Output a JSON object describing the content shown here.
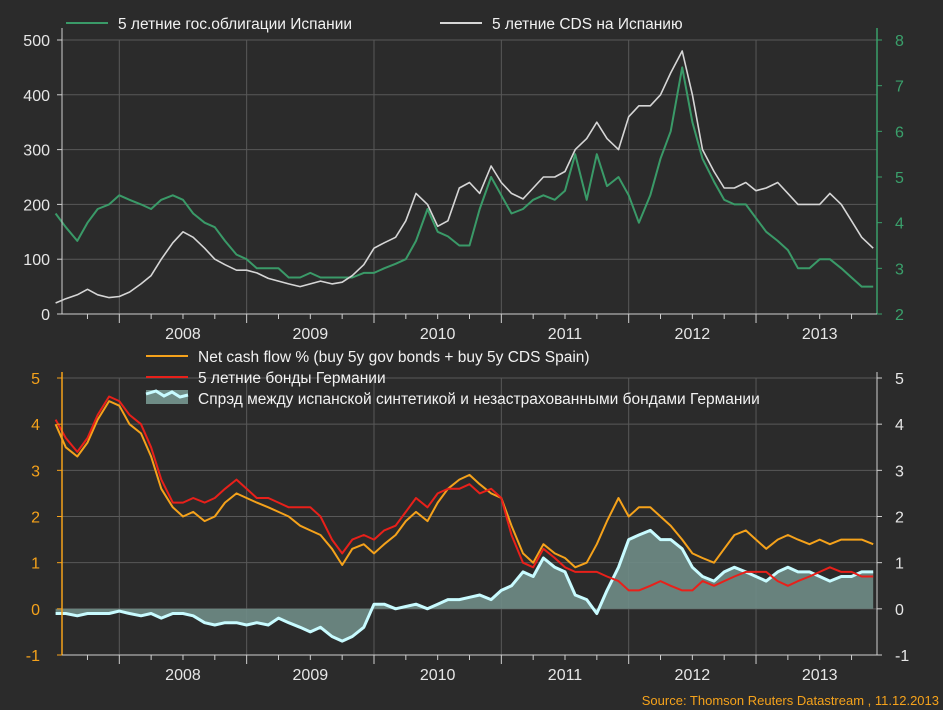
{
  "colors": {
    "background": "#2b2b2b",
    "spain_bonds": "#3a9a68",
    "spain_cds": "#d6d6d6",
    "net_cash_flow": "#f5a21b",
    "german_bonds": "#e8201a",
    "spread_line": "#c8fbff",
    "spread_fill": "#6f8c86",
    "axis_right_top": "#3aa06b",
    "axis_left_bottom": "#f5a21b"
  },
  "source": "Source: Thomson Reuters Datastream , 11.12.2013",
  "chart_data": [
    {
      "type": "line",
      "panel": "top",
      "x_labels": [
        "2008",
        "2009",
        "2010",
        "2011",
        "2012",
        "2013"
      ],
      "xlim": [
        "2007-07",
        "2013-12"
      ],
      "ylim_left": [
        0,
        500
      ],
      "yticks_left": [
        "0",
        "100",
        "200",
        "300",
        "400",
        "500"
      ],
      "ylim_right": [
        2,
        8
      ],
      "yticks_right": [
        "2",
        "3",
        "4",
        "5",
        "6",
        "7",
        "8"
      ],
      "grid": true,
      "legend_placement": "top",
      "series": [
        {
          "name": "5 летние гос.облигации Испании",
          "axis": "right",
          "x": [
            2007.5,
            2007.58,
            2007.67,
            2007.75,
            2007.83,
            2007.92,
            2008.0,
            2008.08,
            2008.17,
            2008.25,
            2008.33,
            2008.42,
            2008.5,
            2008.58,
            2008.67,
            2008.75,
            2008.83,
            2008.92,
            2009.0,
            2009.08,
            2009.17,
            2009.25,
            2009.33,
            2009.42,
            2009.5,
            2009.58,
            2009.67,
            2009.75,
            2009.83,
            2009.92,
            2010.0,
            2010.08,
            2010.17,
            2010.25,
            2010.33,
            2010.42,
            2010.5,
            2010.58,
            2010.67,
            2010.75,
            2010.83,
            2010.92,
            2011.0,
            2011.08,
            2011.17,
            2011.25,
            2011.33,
            2011.42,
            2011.5,
            2011.58,
            2011.67,
            2011.75,
            2011.83,
            2011.92,
            2012.0,
            2012.08,
            2012.17,
            2012.25,
            2012.33,
            2012.42,
            2012.5,
            2012.58,
            2012.67,
            2012.75,
            2012.83,
            2012.92,
            2013.0,
            2013.08,
            2013.17,
            2013.25,
            2013.33,
            2013.42,
            2013.5,
            2013.58,
            2013.67,
            2013.75,
            2013.83,
            2013.92
          ],
          "y": [
            4.2,
            3.9,
            3.6,
            4.0,
            4.3,
            4.4,
            4.6,
            4.5,
            4.4,
            4.3,
            4.5,
            4.6,
            4.5,
            4.2,
            4.0,
            3.9,
            3.6,
            3.3,
            3.2,
            3.0,
            3.0,
            3.0,
            2.8,
            2.8,
            2.9,
            2.8,
            2.8,
            2.8,
            2.8,
            2.9,
            2.9,
            3.0,
            3.1,
            3.2,
            3.6,
            4.3,
            3.8,
            3.7,
            3.5,
            3.5,
            4.3,
            5.0,
            4.6,
            4.2,
            4.3,
            4.5,
            4.6,
            4.5,
            4.7,
            5.5,
            4.5,
            5.5,
            4.8,
            5.0,
            4.6,
            4.0,
            4.6,
            5.4,
            6.0,
            7.4,
            6.2,
            5.4,
            4.9,
            4.5,
            4.4,
            4.4,
            4.1,
            3.8,
            3.6,
            3.4,
            3.0,
            3.0,
            3.2,
            3.2,
            3.0,
            2.8,
            2.6,
            2.6
          ]
        },
        {
          "name": "5 летние CDS на Испанию",
          "axis": "left",
          "x": [
            2007.5,
            2007.58,
            2007.67,
            2007.75,
            2007.83,
            2007.92,
            2008.0,
            2008.08,
            2008.17,
            2008.25,
            2008.33,
            2008.42,
            2008.5,
            2008.58,
            2008.67,
            2008.75,
            2008.83,
            2008.92,
            2009.0,
            2009.08,
            2009.17,
            2009.25,
            2009.33,
            2009.42,
            2009.5,
            2009.58,
            2009.67,
            2009.75,
            2009.83,
            2009.92,
            2010.0,
            2010.08,
            2010.17,
            2010.25,
            2010.33,
            2010.42,
            2010.5,
            2010.58,
            2010.67,
            2010.75,
            2010.83,
            2010.92,
            2011.0,
            2011.08,
            2011.17,
            2011.25,
            2011.33,
            2011.42,
            2011.5,
            2011.58,
            2011.67,
            2011.75,
            2011.83,
            2011.92,
            2012.0,
            2012.08,
            2012.17,
            2012.25,
            2012.33,
            2012.42,
            2012.5,
            2012.58,
            2012.67,
            2012.75,
            2012.83,
            2012.92,
            2013.0,
            2013.08,
            2013.17,
            2013.25,
            2013.33,
            2013.42,
            2013.5,
            2013.58,
            2013.67,
            2013.75,
            2013.83,
            2013.92
          ],
          "y": [
            20,
            28,
            35,
            45,
            35,
            30,
            32,
            40,
            55,
            70,
            100,
            130,
            150,
            140,
            120,
            100,
            90,
            80,
            80,
            75,
            65,
            60,
            55,
            50,
            55,
            60,
            55,
            58,
            70,
            90,
            120,
            130,
            140,
            170,
            220,
            200,
            160,
            170,
            230,
            240,
            220,
            270,
            240,
            220,
            210,
            230,
            250,
            250,
            260,
            300,
            320,
            350,
            320,
            300,
            360,
            380,
            380,
            400,
            440,
            480,
            400,
            300,
            260,
            230,
            230,
            240,
            225,
            230,
            240,
            220,
            200,
            200,
            200,
            220,
            200,
            170,
            140,
            120
          ]
        }
      ]
    },
    {
      "type": "line",
      "panel": "bottom",
      "x_labels": [
        "2008",
        "2009",
        "2010",
        "2011",
        "2012",
        "2013"
      ],
      "xlim": [
        "2007-07",
        "2013-12"
      ],
      "ylim": [
        -1,
        5
      ],
      "yticks": [
        "-1",
        "0",
        "1",
        "2",
        "3",
        "4",
        "5"
      ],
      "grid": true,
      "legend_placement": "top",
      "series": [
        {
          "name": "Net cash flow % (buy 5y gov bonds + buy 5y CDS Spain)",
          "x": [
            2007.5,
            2007.58,
            2007.67,
            2007.75,
            2007.83,
            2007.92,
            2008.0,
            2008.08,
            2008.17,
            2008.25,
            2008.33,
            2008.42,
            2008.5,
            2008.58,
            2008.67,
            2008.75,
            2008.83,
            2008.92,
            2009.0,
            2009.08,
            2009.17,
            2009.25,
            2009.33,
            2009.42,
            2009.5,
            2009.58,
            2009.67,
            2009.75,
            2009.83,
            2009.92,
            2010.0,
            2010.08,
            2010.17,
            2010.25,
            2010.33,
            2010.42,
            2010.5,
            2010.58,
            2010.67,
            2010.75,
            2010.83,
            2010.92,
            2011.0,
            2011.08,
            2011.17,
            2011.25,
            2011.33,
            2011.42,
            2011.5,
            2011.58,
            2011.67,
            2011.75,
            2011.83,
            2011.92,
            2012.0,
            2012.08,
            2012.17,
            2012.25,
            2012.33,
            2012.42,
            2012.5,
            2012.58,
            2012.67,
            2012.75,
            2012.83,
            2012.92,
            2013.0,
            2013.08,
            2013.17,
            2013.25,
            2013.33,
            2013.42,
            2013.5,
            2013.58,
            2013.67,
            2013.75,
            2013.83,
            2013.92
          ],
          "y": [
            4.0,
            3.5,
            3.3,
            3.6,
            4.1,
            4.5,
            4.4,
            4.0,
            3.8,
            3.3,
            2.6,
            2.2,
            2.0,
            2.1,
            1.9,
            2.0,
            2.3,
            2.5,
            2.4,
            2.3,
            2.2,
            2.1,
            2.0,
            1.8,
            1.7,
            1.6,
            1.3,
            0.95,
            1.3,
            1.4,
            1.2,
            1.4,
            1.6,
            1.9,
            2.1,
            1.9,
            2.3,
            2.6,
            2.8,
            2.9,
            2.7,
            2.5,
            2.4,
            1.8,
            1.2,
            1.0,
            1.4,
            1.2,
            1.1,
            0.9,
            1.0,
            1.4,
            1.9,
            2.4,
            2.0,
            2.2,
            2.2,
            2.0,
            1.8,
            1.5,
            1.2,
            1.1,
            1.0,
            1.3,
            1.6,
            1.7,
            1.5,
            1.3,
            1.5,
            1.6,
            1.5,
            1.4,
            1.5,
            1.4,
            1.5,
            1.5,
            1.5,
            1.4
          ]
        },
        {
          "name": "5 летние бонды Германии",
          "x": [
            2007.5,
            2007.58,
            2007.67,
            2007.75,
            2007.83,
            2007.92,
            2008.0,
            2008.08,
            2008.17,
            2008.25,
            2008.33,
            2008.42,
            2008.5,
            2008.58,
            2008.67,
            2008.75,
            2008.83,
            2008.92,
            2009.0,
            2009.08,
            2009.17,
            2009.25,
            2009.33,
            2009.42,
            2009.5,
            2009.58,
            2009.67,
            2009.75,
            2009.83,
            2009.92,
            2010.0,
            2010.08,
            2010.17,
            2010.25,
            2010.33,
            2010.42,
            2010.5,
            2010.58,
            2010.67,
            2010.75,
            2010.83,
            2010.92,
            2011.0,
            2011.08,
            2011.17,
            2011.25,
            2011.33,
            2011.42,
            2011.5,
            2011.58,
            2011.67,
            2011.75,
            2011.83,
            2011.92,
            2012.0,
            2012.08,
            2012.17,
            2012.25,
            2012.33,
            2012.42,
            2012.5,
            2012.58,
            2012.67,
            2012.75,
            2012.83,
            2012.92,
            2013.0,
            2013.08,
            2013.17,
            2013.25,
            2013.33,
            2013.42,
            2013.5,
            2013.58,
            2013.67,
            2013.75,
            2013.83,
            2013.92
          ],
          "y": [
            4.1,
            3.7,
            3.4,
            3.7,
            4.2,
            4.6,
            4.5,
            4.2,
            4.0,
            3.5,
            2.8,
            2.3,
            2.3,
            2.4,
            2.3,
            2.4,
            2.6,
            2.8,
            2.6,
            2.4,
            2.4,
            2.3,
            2.2,
            2.2,
            2.2,
            2.0,
            1.5,
            1.2,
            1.5,
            1.6,
            1.5,
            1.7,
            1.8,
            2.1,
            2.4,
            2.2,
            2.5,
            2.6,
            2.6,
            2.7,
            2.5,
            2.6,
            2.4,
            1.6,
            1.0,
            0.9,
            1.3,
            1.1,
            0.9,
            0.8,
            0.8,
            0.8,
            0.7,
            0.6,
            0.4,
            0.4,
            0.5,
            0.6,
            0.5,
            0.4,
            0.4,
            0.6,
            0.5,
            0.6,
            0.7,
            0.8,
            0.8,
            0.8,
            0.6,
            0.5,
            0.6,
            0.7,
            0.8,
            0.9,
            0.8,
            0.8,
            0.7,
            0.7
          ]
        },
        {
          "name": "Спрэд между испанской синтетикой и незастрахованными бондами Германии",
          "style": "area",
          "x": [
            2007.5,
            2007.58,
            2007.67,
            2007.75,
            2007.83,
            2007.92,
            2008.0,
            2008.08,
            2008.17,
            2008.25,
            2008.33,
            2008.42,
            2008.5,
            2008.58,
            2008.67,
            2008.75,
            2008.83,
            2008.92,
            2009.0,
            2009.08,
            2009.17,
            2009.25,
            2009.33,
            2009.42,
            2009.5,
            2009.58,
            2009.67,
            2009.75,
            2009.83,
            2009.92,
            2010.0,
            2010.08,
            2010.17,
            2010.25,
            2010.33,
            2010.42,
            2010.5,
            2010.58,
            2010.67,
            2010.75,
            2010.83,
            2010.92,
            2011.0,
            2011.08,
            2011.17,
            2011.25,
            2011.33,
            2011.42,
            2011.5,
            2011.58,
            2011.67,
            2011.75,
            2011.83,
            2011.92,
            2012.0,
            2012.08,
            2012.17,
            2012.25,
            2012.33,
            2012.42,
            2012.5,
            2012.58,
            2012.67,
            2012.75,
            2012.83,
            2012.92,
            2013.0,
            2013.08,
            2013.17,
            2013.25,
            2013.33,
            2013.42,
            2013.5,
            2013.58,
            2013.67,
            2013.75,
            2013.83,
            2013.92
          ],
          "y": [
            -0.1,
            -0.1,
            -0.15,
            -0.1,
            -0.1,
            -0.1,
            -0.05,
            -0.1,
            -0.15,
            -0.1,
            -0.2,
            -0.1,
            -0.1,
            -0.15,
            -0.3,
            -0.35,
            -0.3,
            -0.3,
            -0.35,
            -0.3,
            -0.35,
            -0.2,
            -0.3,
            -0.4,
            -0.5,
            -0.4,
            -0.6,
            -0.7,
            -0.6,
            -0.4,
            0.1,
            0.1,
            0.0,
            0.05,
            0.1,
            0.0,
            0.1,
            0.2,
            0.2,
            0.25,
            0.3,
            0.2,
            0.4,
            0.5,
            0.8,
            0.7,
            1.1,
            0.9,
            0.8,
            0.3,
            0.2,
            -0.1,
            0.4,
            0.9,
            1.5,
            1.6,
            1.7,
            1.5,
            1.5,
            1.3,
            0.9,
            0.7,
            0.6,
            0.8,
            0.9,
            0.8,
            0.7,
            0.6,
            0.8,
            0.9,
            0.8,
            0.8,
            0.7,
            0.6,
            0.7,
            0.7,
            0.8,
            0.8
          ]
        }
      ]
    }
  ]
}
